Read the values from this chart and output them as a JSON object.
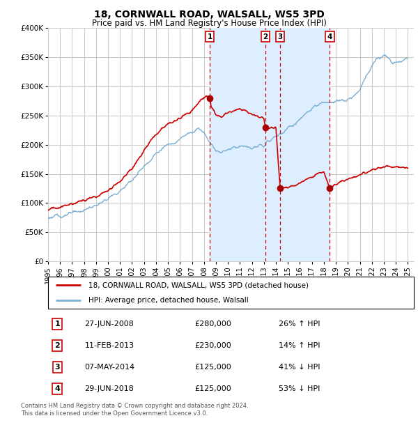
{
  "title1": "18, CORNWALL ROAD, WALSALL, WS5 3PD",
  "title2": "Price paid vs. HM Land Registry's House Price Index (HPI)",
  "legend_line1": "18, CORNWALL ROAD, WALSALL, WS5 3PD (detached house)",
  "legend_line2": "HPI: Average price, detached house, Walsall",
  "footer1": "Contains HM Land Registry data © Crown copyright and database right 2024.",
  "footer2": "This data is licensed under the Open Government Licence v3.0.",
  "ylim": [
    0,
    400000
  ],
  "yticks": [
    0,
    50000,
    100000,
    150000,
    200000,
    250000,
    300000,
    350000,
    400000
  ],
  "ytick_labels": [
    "£0",
    "£50K",
    "£100K",
    "£150K",
    "£200K",
    "£250K",
    "£300K",
    "£350K",
    "£400K"
  ],
  "transactions": [
    {
      "num": 1,
      "date": "27-JUN-2008",
      "price": 280000,
      "pct": "26%",
      "dir": "↑"
    },
    {
      "num": 2,
      "date": "11-FEB-2013",
      "price": 230000,
      "pct": "14%",
      "dir": "↑"
    },
    {
      "num": 3,
      "date": "07-MAY-2014",
      "price": 125000,
      "pct": "41%",
      "dir": "↓"
    },
    {
      "num": 4,
      "date": "29-JUN-2018",
      "price": 125000,
      "pct": "53%",
      "dir": "↓"
    }
  ],
  "vline_dates": [
    2008.49,
    2013.12,
    2014.35,
    2018.49
  ],
  "vspan_ranges": [
    [
      2008.49,
      2013.12
    ],
    [
      2013.12,
      2014.35
    ],
    [
      2014.35,
      2018.49
    ]
  ],
  "red_line_color": "#cc0000",
  "blue_line_color": "#7bafd4",
  "vline_color": "#cc0000",
  "vspan_color": "#ddeeff",
  "grid_color": "#cccccc",
  "background_color": "#ffffff",
  "dot_color": "#aa0000",
  "transaction_prices": [
    280000,
    230000,
    125000,
    125000
  ],
  "xlim": [
    1995,
    2025.5
  ],
  "xtick_years": [
    1995,
    1996,
    1997,
    1998,
    1999,
    2000,
    2001,
    2002,
    2003,
    2004,
    2005,
    2006,
    2007,
    2008,
    2009,
    2010,
    2011,
    2012,
    2013,
    2014,
    2015,
    2016,
    2017,
    2018,
    2019,
    2020,
    2021,
    2022,
    2023,
    2024,
    2025
  ]
}
